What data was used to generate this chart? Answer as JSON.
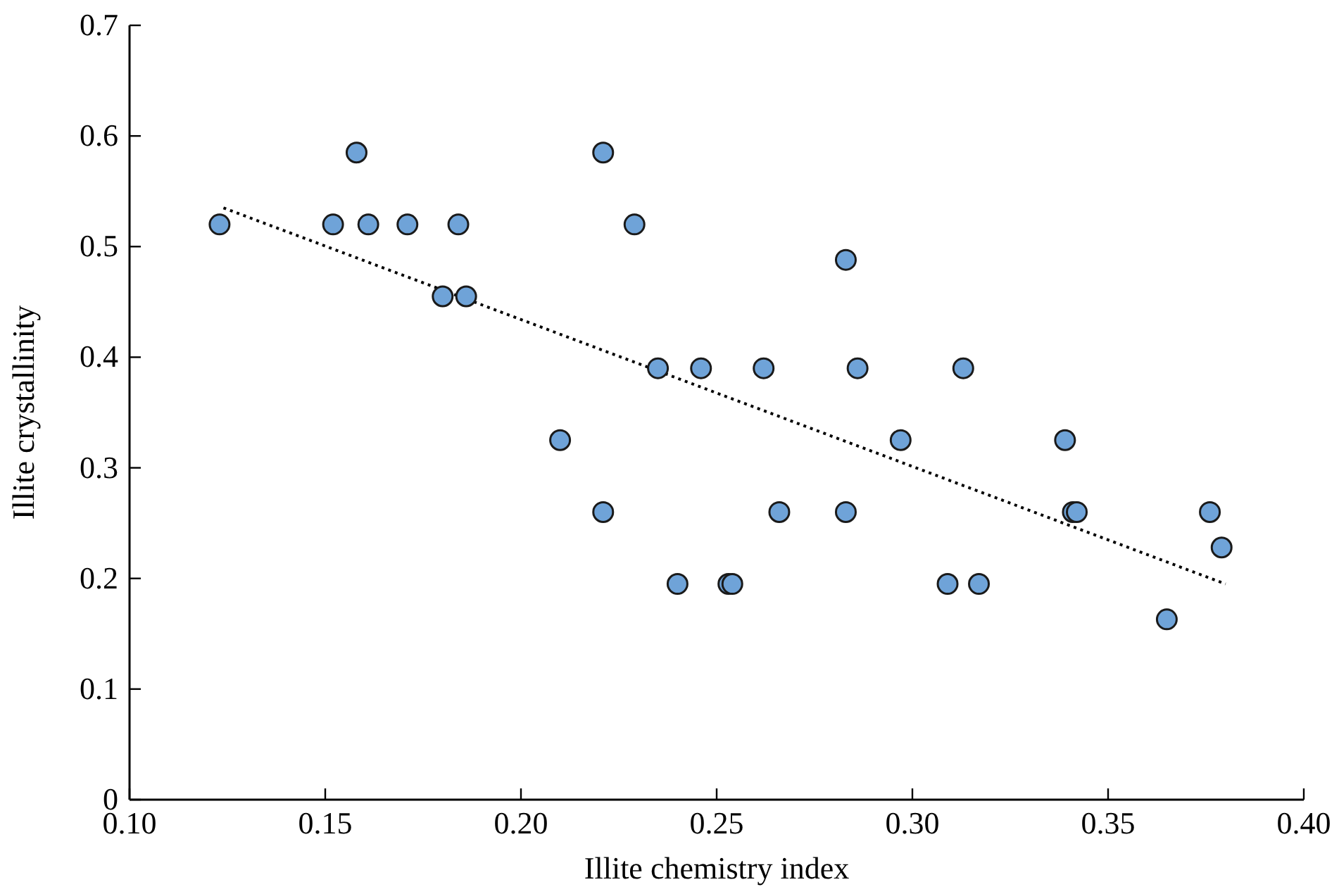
{
  "chart_data": {
    "type": "scatter",
    "xlabel": "Illite chemistry index",
    "ylabel": "Illite crystallinity",
    "xlim": [
      0.1,
      0.4
    ],
    "xticks": [
      {
        "value": 0.1,
        "label": "0.10"
      },
      {
        "value": 0.15,
        "label": "0.15"
      },
      {
        "value": 0.2,
        "label": "0.20"
      },
      {
        "value": 0.25,
        "label": "0.25"
      },
      {
        "value": 0.3,
        "label": "0.30"
      },
      {
        "value": 0.35,
        "label": "0.35"
      },
      {
        "value": 0.4,
        "label": "0.40"
      }
    ],
    "ylim": [
      0,
      0.7
    ],
    "yticks": [
      0,
      0.1,
      0.2,
      0.3,
      0.4,
      0.5,
      0.6,
      0.7
    ],
    "series": [
      {
        "color": "#6fa3d8",
        "marker": "circle",
        "x": [
          0.123,
          0.152,
          0.158,
          0.161,
          0.171,
          0.184,
          0.18,
          0.186,
          0.21,
          0.221,
          0.221,
          0.229,
          0.235,
          0.246,
          0.24,
          0.262,
          0.286,
          0.313,
          0.297,
          0.339,
          0.266,
          0.283,
          0.341,
          0.342,
          0.376,
          0.379,
          0.253,
          0.254,
          0.309,
          0.317,
          0.365,
          0.283
        ],
        "values": [
          0.52,
          0.52,
          0.585,
          0.52,
          0.52,
          0.52,
          0.455,
          0.455,
          0.325,
          0.585,
          0.26,
          0.52,
          0.39,
          0.39,
          0.195,
          0.39,
          0.39,
          0.39,
          0.325,
          0.325,
          0.26,
          0.26,
          0.26,
          0.26,
          0.26,
          0.228,
          0.195,
          0.195,
          0.195,
          0.195,
          0.163,
          0.488
        ]
      },
      {
        "type": "line",
        "color": "#000000",
        "marker": "none",
        "line_style": "dotted",
        "x": [
          0.124,
          0.38
        ],
        "values": [
          0.535,
          0.195
        ]
      }
    ]
  }
}
